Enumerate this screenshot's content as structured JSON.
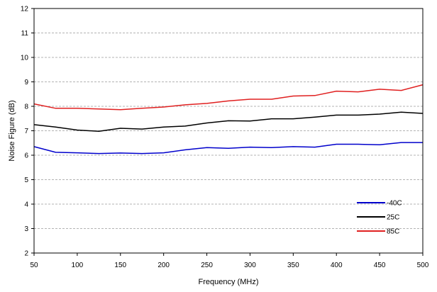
{
  "chart_data": {
    "type": "line",
    "xlabel": "Frequency (MHz)",
    "ylabel": "Noise Figure (dB)",
    "xlim": [
      50,
      500
    ],
    "ylim": [
      2,
      12
    ],
    "xticks": [
      50,
      100,
      150,
      200,
      250,
      300,
      350,
      400,
      450,
      500
    ],
    "yticks": [
      2,
      3,
      4,
      5,
      6,
      7,
      8,
      9,
      10,
      11,
      12
    ],
    "grid": "horizontal-dashed",
    "legend_position": "bottom-right",
    "x": [
      50,
      75,
      100,
      125,
      150,
      175,
      200,
      225,
      250,
      275,
      300,
      325,
      350,
      375,
      400,
      425,
      450,
      475,
      500
    ],
    "series": [
      {
        "name": "-40C",
        "color": "#0000cc",
        "values": [
          6.35,
          6.12,
          6.1,
          6.07,
          6.09,
          6.07,
          6.1,
          6.22,
          6.31,
          6.28,
          6.33,
          6.31,
          6.35,
          6.33,
          6.45,
          6.45,
          6.43,
          6.52,
          6.52
        ]
      },
      {
        "name": "25C",
        "color": "#000000",
        "values": [
          7.25,
          7.15,
          7.03,
          6.98,
          7.1,
          7.07,
          7.15,
          7.19,
          7.32,
          7.41,
          7.4,
          7.49,
          7.49,
          7.56,
          7.64,
          7.64,
          7.68,
          7.76,
          7.71
        ]
      },
      {
        "name": "85C",
        "color": "#e02020",
        "values": [
          8.1,
          7.92,
          7.92,
          7.89,
          7.86,
          7.92,
          7.97,
          8.06,
          8.12,
          8.22,
          8.29,
          8.29,
          8.42,
          8.44,
          8.62,
          8.59,
          8.7,
          8.65,
          8.88
        ]
      }
    ]
  }
}
